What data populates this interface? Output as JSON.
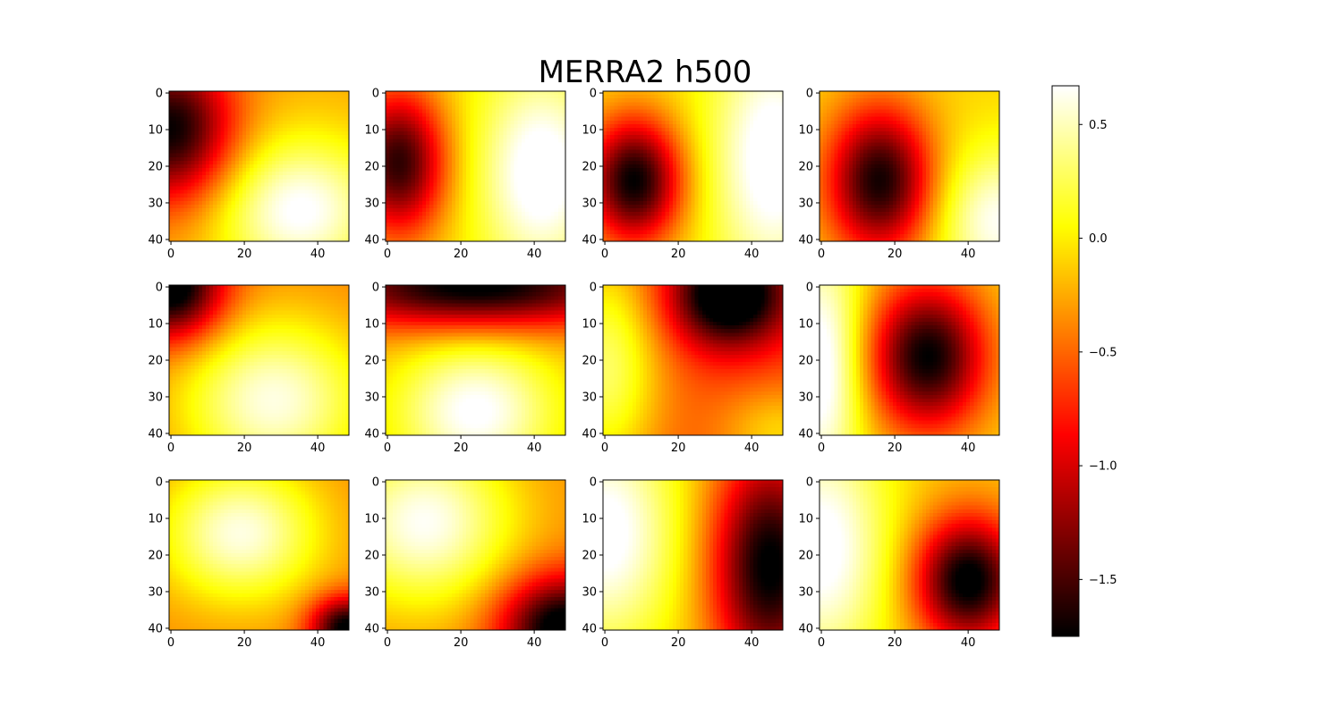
{
  "chart_data": {
    "type": "heatmap",
    "title": "MERRA2 h500",
    "colormap": "hot",
    "grid_shape": [
      3,
      4
    ],
    "image_rows": 41,
    "image_cols": 49,
    "x_ticks": [
      0,
      20,
      40
    ],
    "y_ticks": [
      0,
      10,
      20,
      30,
      40
    ],
    "colorbar": {
      "vmin": -1.75,
      "vmax": 0.67,
      "ticks": [
        0.5,
        0.0,
        -0.5,
        -1.0,
        -1.5
      ],
      "tick_labels": [
        "0.5",
        "0.0",
        "−0.5",
        "−1.0",
        "−1.5"
      ]
    },
    "panels": [
      {
        "row": 0,
        "col": 0,
        "description_fields": {
          "base": -0.25,
          "components": [
            {
              "cx": 0,
              "cy": 10,
              "amp": -1.5,
              "sx": 12,
              "sy": 14
            },
            {
              "cx": 35,
              "cy": 32,
              "amp": 0.95,
              "sx": 16,
              "sy": 14
            }
          ]
        }
      },
      {
        "row": 0,
        "col": 1,
        "components": [
          {
            "cx": 3,
            "cy": 19,
            "amp": -1.55,
            "sx": 9,
            "sy": 14
          },
          {
            "cx": 42,
            "cy": 22,
            "amp": 0.85,
            "sx": 12,
            "sy": 20
          }
        ],
        "base": -0.05
      },
      {
        "row": 0,
        "col": 2,
        "components": [
          {
            "cx": 8,
            "cy": 24,
            "amp": -1.7,
            "sx": 9,
            "sy": 12
          },
          {
            "cx": 46,
            "cy": 18,
            "amp": 0.85,
            "sx": 12,
            "sy": 25
          }
        ],
        "base": -0.05
      },
      {
        "row": 0,
        "col": 3,
        "components": [
          {
            "cx": 16,
            "cy": 24,
            "amp": -1.6,
            "sx": 10,
            "sy": 14
          },
          {
            "cx": 48,
            "cy": 35,
            "amp": 0.75,
            "sx": 12,
            "sy": 14
          }
        ],
        "base": -0.1
      },
      {
        "row": 1,
        "col": 0,
        "components": [
          {
            "cx": 0,
            "cy": 0,
            "amp": -1.6,
            "sx": 10,
            "sy": 10
          },
          {
            "cx": 28,
            "cy": 31,
            "amp": 1.0,
            "sx": 18,
            "sy": 16
          }
        ],
        "base": -0.4
      },
      {
        "row": 1,
        "col": 1,
        "components": [
          {
            "cx": 24,
            "cy": 0,
            "amp": -1.6,
            "sx": 30,
            "sy": 8
          },
          {
            "cx": 24,
            "cy": 34,
            "amp": 0.95,
            "sx": 16,
            "sy": 14
          }
        ],
        "base": -0.25
      },
      {
        "row": 1,
        "col": 2,
        "components": [
          {
            "cx": 34,
            "cy": 2,
            "amp": -1.6,
            "sx": 11,
            "sy": 10
          },
          {
            "cx": 0,
            "cy": 22,
            "amp": 0.9,
            "sx": 11,
            "sy": 22
          },
          {
            "cx": 48,
            "cy": 40,
            "amp": 0.5,
            "sx": 12,
            "sy": 9
          }
        ],
        "base": -0.6
      },
      {
        "row": 1,
        "col": 3,
        "components": [
          {
            "cx": 29,
            "cy": 19,
            "amp": -1.65,
            "sx": 11,
            "sy": 14
          },
          {
            "cx": 0,
            "cy": 22,
            "amp": 0.9,
            "sx": 8,
            "sy": 25
          }
        ],
        "base": -0.1
      },
      {
        "row": 2,
        "col": 0,
        "components": [
          {
            "cx": 19,
            "cy": 14,
            "amp": 0.95,
            "sx": 15,
            "sy": 13
          },
          {
            "cx": 48,
            "cy": 40,
            "amp": -1.5,
            "sx": 7,
            "sy": 6
          }
        ],
        "base": -0.35
      },
      {
        "row": 2,
        "col": 1,
        "components": [
          {
            "cx": 10,
            "cy": 11,
            "amp": 1.0,
            "sx": 17,
            "sy": 16
          },
          {
            "cx": 48,
            "cy": 40,
            "amp": -1.6,
            "sx": 12,
            "sy": 10
          }
        ],
        "base": -0.35
      },
      {
        "row": 2,
        "col": 2,
        "components": [
          {
            "cx": 45,
            "cy": 23,
            "amp": -1.65,
            "sx": 11,
            "sy": 22
          },
          {
            "cx": 0,
            "cy": 14,
            "amp": 0.9,
            "sx": 14,
            "sy": 22
          }
        ],
        "base": -0.15
      },
      {
        "row": 2,
        "col": 3,
        "components": [
          {
            "cx": 40,
            "cy": 27,
            "amp": -1.7,
            "sx": 10,
            "sy": 12
          },
          {
            "cx": 0,
            "cy": 18,
            "amp": 0.9,
            "sx": 13,
            "sy": 24
          }
        ],
        "base": -0.15
      }
    ]
  }
}
